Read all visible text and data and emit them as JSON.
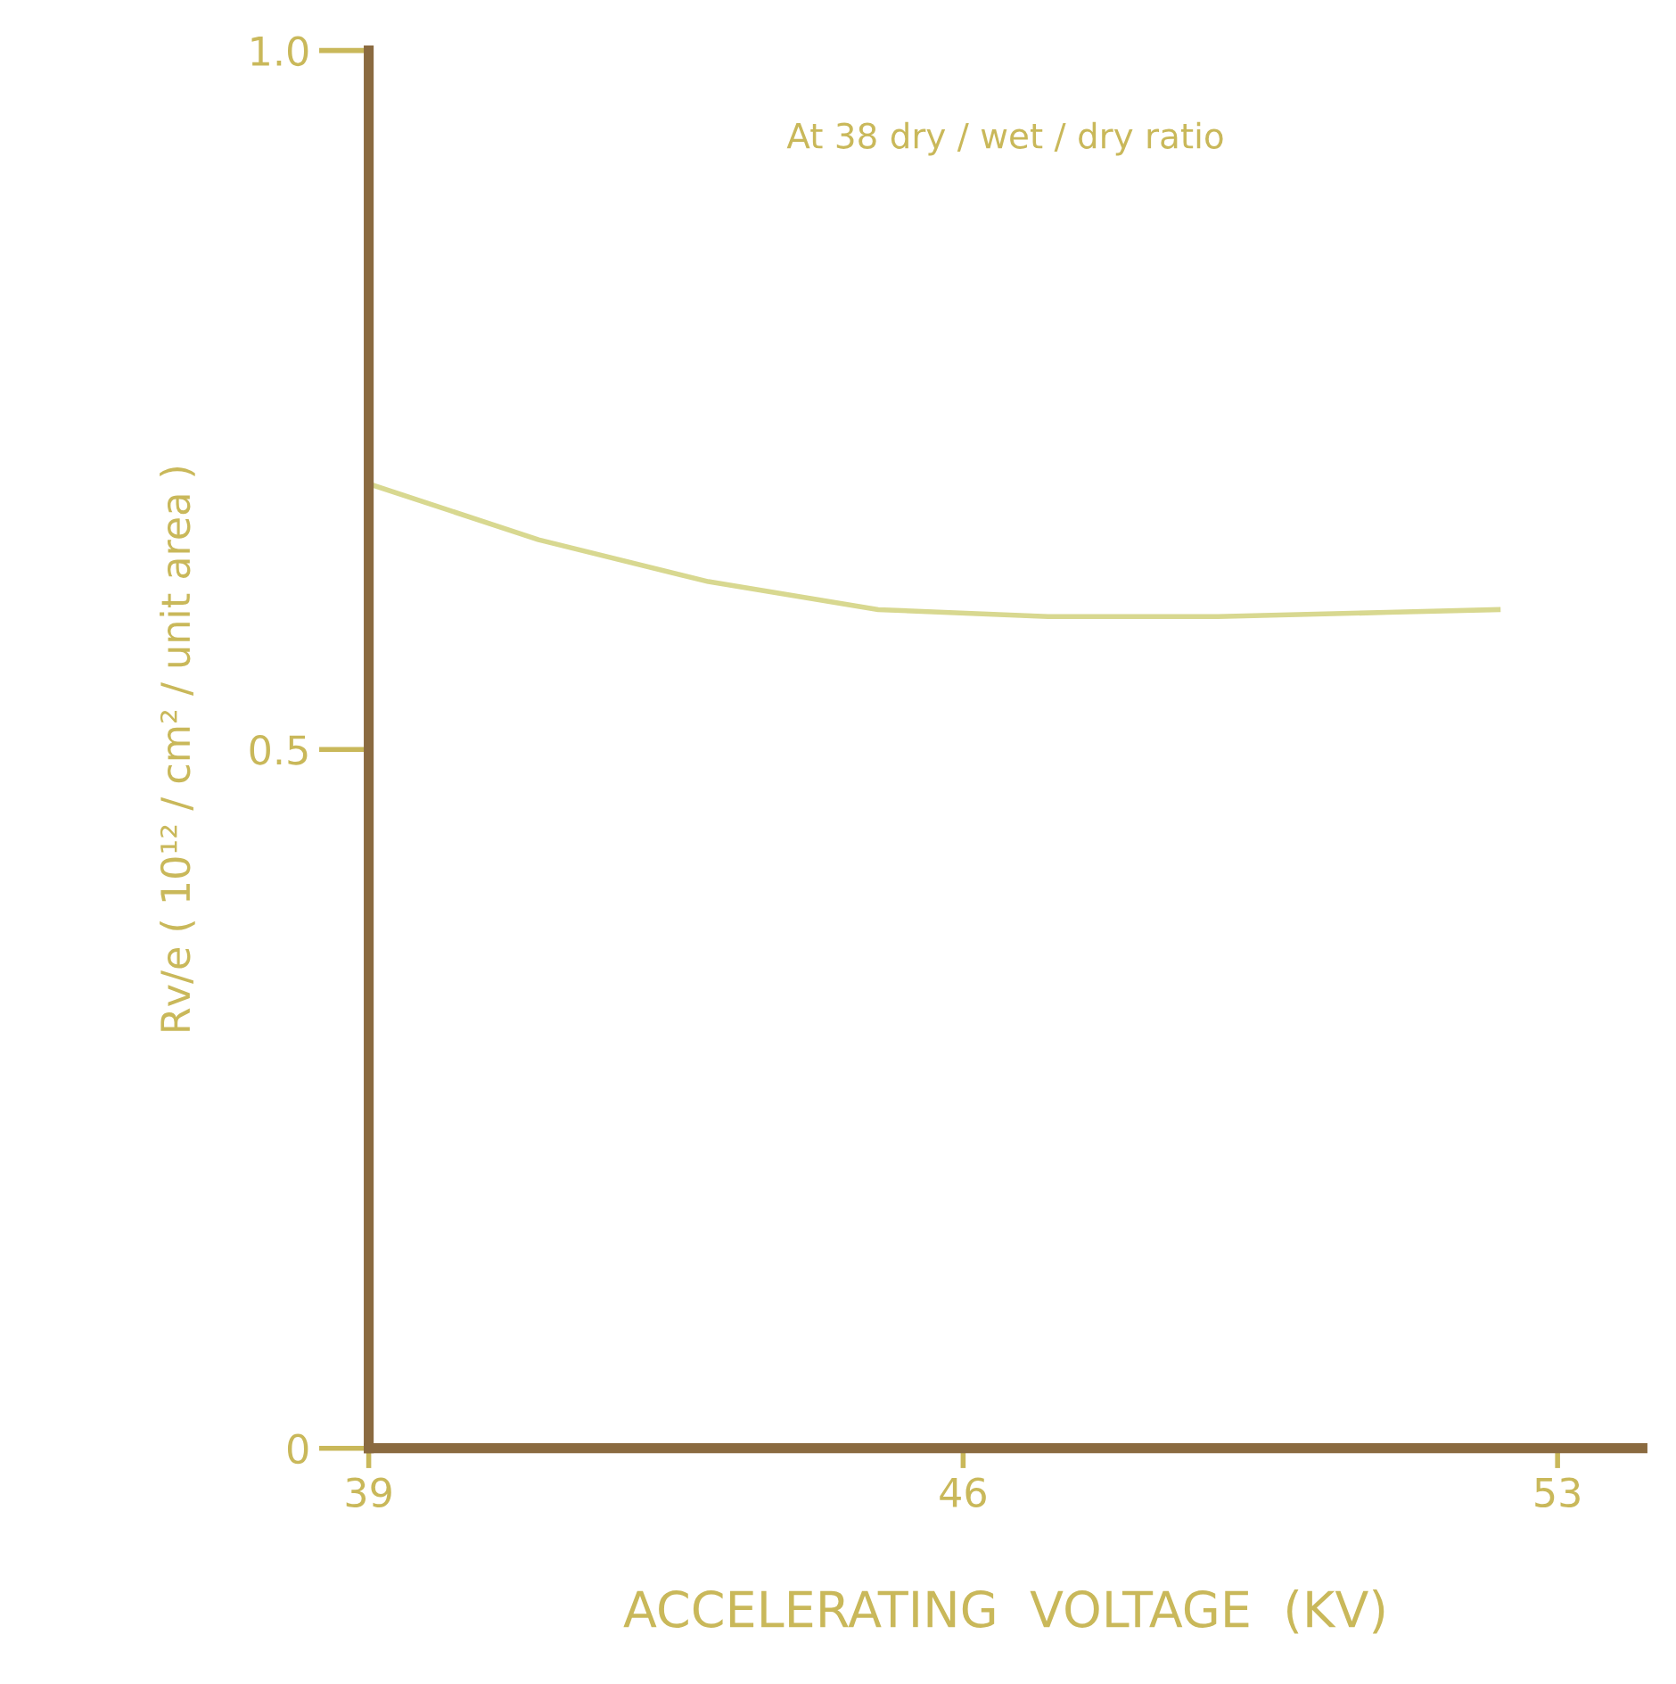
{
  "chart_data": {
    "type": "line",
    "title": "At 38 dry / wet / dry ratio",
    "xlabel": "ACCELERATING  VOLTAGE  (KV)",
    "ylabel": "Rv/e ( 10¹² / cm² / unit area )",
    "x": [
      39,
      41,
      43,
      45,
      47,
      49,
      51,
      52.3
    ],
    "series": [
      {
        "color": "#d8d890",
        "values": [
          0.69,
          0.65,
          0.62,
          0.6,
          0.595,
          0.595,
          0.598,
          0.6
        ]
      }
    ],
    "xlim": [
      39,
      54
    ],
    "xticks": [
      39,
      46,
      53
    ],
    "ylim": [
      0,
      1.0
    ],
    "yticks": [
      0,
      0.5,
      {
        "value": 1.0,
        "label": "1.0"
      }
    ],
    "grid": false,
    "legend": false,
    "marker": "none",
    "line_style": "solid"
  }
}
